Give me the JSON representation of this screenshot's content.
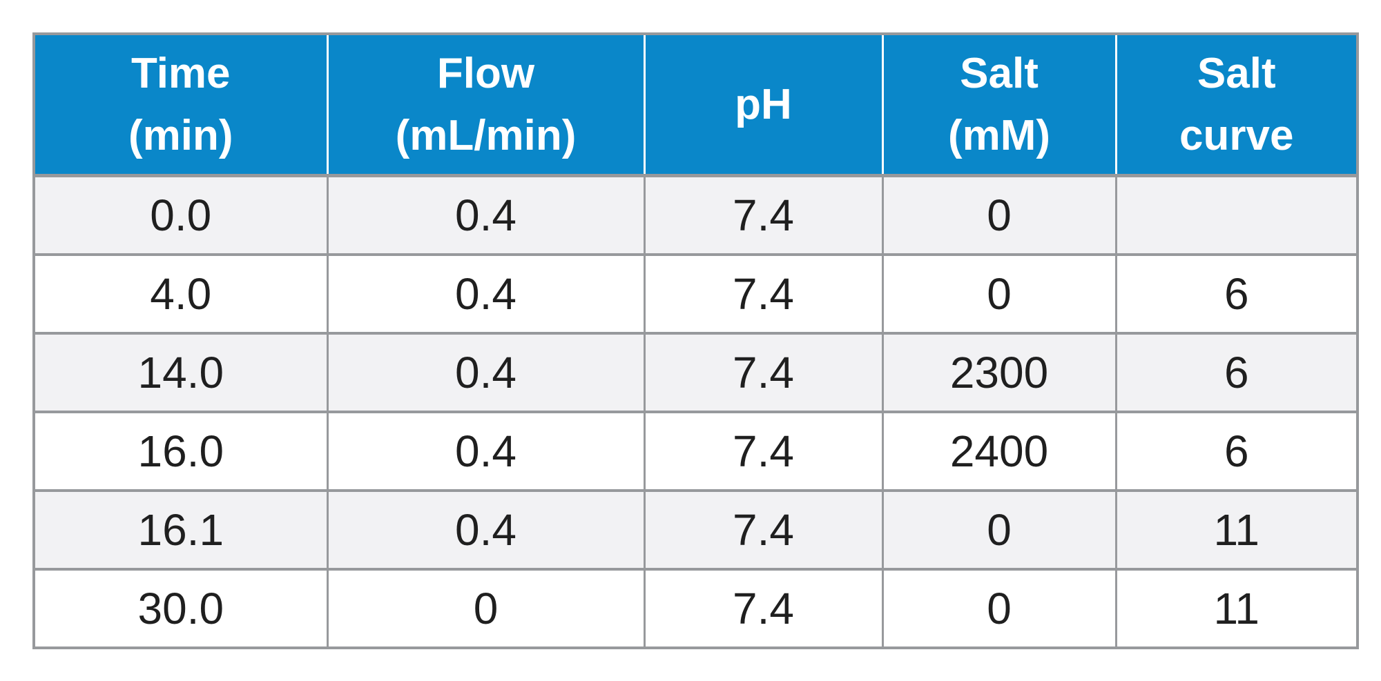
{
  "theme": {
    "header_bg": "#0a87c9",
    "header_text": "#ffffff",
    "row_alt_bg": "#f2f2f4",
    "row_bg": "#ffffff",
    "border_color": "#97999c",
    "body_text": "#1f1f1f"
  },
  "chart_data": {
    "type": "table",
    "title": "",
    "columns": [
      {
        "name": "time",
        "header_line1": "Time",
        "header_line2": "(min)"
      },
      {
        "name": "flow",
        "header_line1": "Flow",
        "header_line2": "(mL/min)"
      },
      {
        "name": "ph",
        "header_line1": "pH",
        "header_line2": ""
      },
      {
        "name": "salt",
        "header_line1": "Salt",
        "header_line2": "(mM)"
      },
      {
        "name": "salt_curve",
        "header_line1": "Salt",
        "header_line2": "curve"
      }
    ],
    "rows": [
      [
        "0.0",
        "0.4",
        "7.4",
        "0",
        ""
      ],
      [
        "4.0",
        "0.4",
        "7.4",
        "0",
        "6"
      ],
      [
        "14.0",
        "0.4",
        "7.4",
        "2300",
        "6"
      ],
      [
        "16.0",
        "0.4",
        "7.4",
        "2400",
        "6"
      ],
      [
        "16.1",
        "0.4",
        "7.4",
        "0",
        "11"
      ],
      [
        "30.0",
        "0",
        "7.4",
        "0",
        "11"
      ]
    ]
  }
}
